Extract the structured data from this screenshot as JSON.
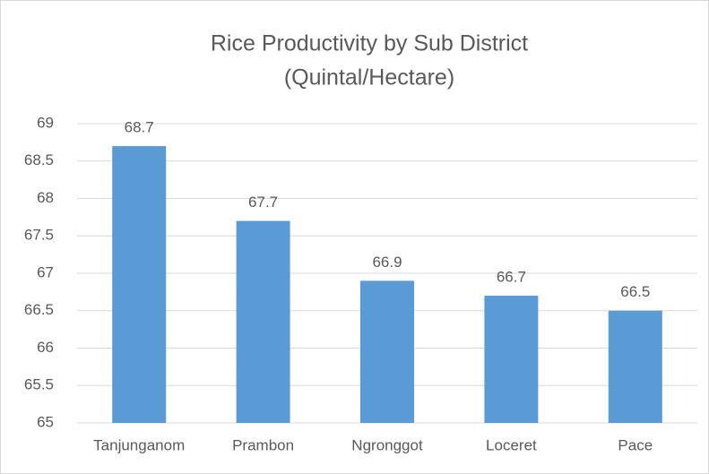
{
  "chart_data": {
    "type": "bar",
    "title": "Rice Productivity by Sub District",
    "subtitle": "(Quintal/Hectare)",
    "categories": [
      "Tanjunganom",
      "Prambon",
      "Ngronggot",
      "Loceret",
      "Pace"
    ],
    "values": [
      68.7,
      67.7,
      66.9,
      66.7,
      66.5
    ],
    "color": "#5b9bd5",
    "ylim": [
      65,
      69
    ],
    "yticks": [
      65,
      65.5,
      66,
      66.5,
      67,
      67.5,
      68,
      68.5,
      69
    ],
    "grid": true
  }
}
